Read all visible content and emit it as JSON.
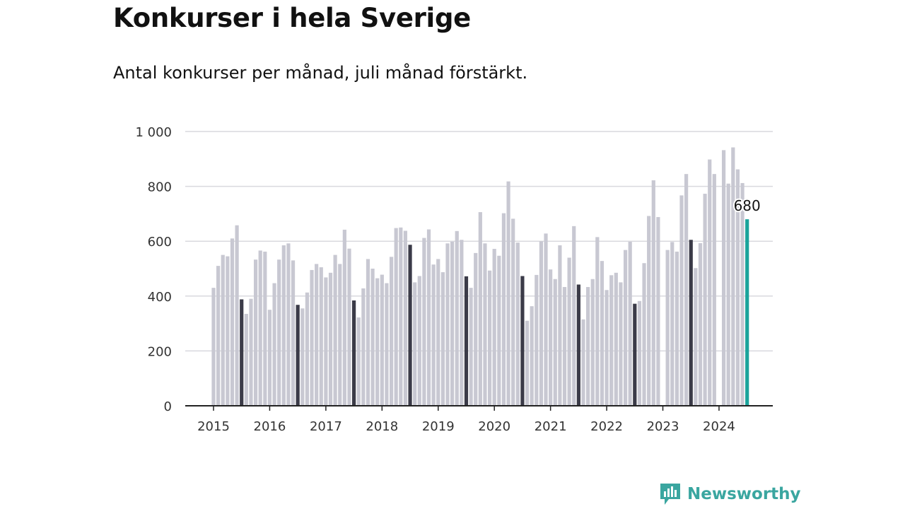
{
  "header": {
    "title": "Konkurser i hela Sverige",
    "subtitle": "Antal konkurser per månad, juli månad förstärkt."
  },
  "brand": {
    "name": "Newsworthy",
    "icon": "newsworthy-logo-icon",
    "color": "#3aa6a0"
  },
  "colors": {
    "bar": "#c8c8d2",
    "july": "#3b3b48",
    "latest": "#1aa39b",
    "grid": "#d9d9de",
    "axis": "#222222"
  },
  "chart_data": {
    "type": "bar",
    "title": "Konkurser i hela Sverige",
    "subtitle": "Antal konkurser per månad, juli månad förstärkt.",
    "xlabel": "",
    "ylabel": "",
    "ylim": [
      0,
      1000
    ],
    "yticks": [
      0,
      200,
      400,
      600,
      800,
      1000
    ],
    "ytick_labels": [
      "0",
      "200",
      "400",
      "600",
      "800",
      "1 000"
    ],
    "grid": true,
    "highlight": "July bars darker; latest month highlighted and labeled",
    "years": [
      "2015",
      "2016",
      "2017",
      "2018",
      "2019",
      "2020",
      "2021",
      "2022",
      "2023",
      "2024"
    ],
    "latest_label": "680",
    "series": [
      {
        "values": [
          430,
          510,
          550,
          545,
          610,
          658,
          388,
          335,
          390,
          533,
          566,
          562,
          350,
          447,
          533,
          585,
          592,
          530,
          368,
          355,
          413,
          495,
          517,
          505,
          468,
          485,
          550,
          517,
          642,
          573,
          384,
          322,
          428,
          535,
          500,
          465,
          478,
          447,
          543,
          648,
          650,
          638,
          587,
          450,
          473,
          612,
          643,
          515,
          535,
          487,
          592,
          598,
          637,
          605,
          472,
          430,
          557,
          706,
          592,
          493,
          572,
          547,
          702,
          818,
          682,
          595,
          473,
          310,
          363,
          477,
          600,
          628,
          497,
          462,
          585,
          433,
          540,
          655,
          442,
          315,
          433,
          462,
          615,
          528,
          422,
          476,
          485,
          450,
          568,
          598,
          372,
          382,
          520,
          692,
          822,
          688,
          null,
          568,
          597,
          562,
          767,
          845,
          605,
          502,
          593,
          773,
          898,
          845,
          null,
          932,
          810,
          942,
          862,
          812,
          680
        ]
      }
    ]
  }
}
